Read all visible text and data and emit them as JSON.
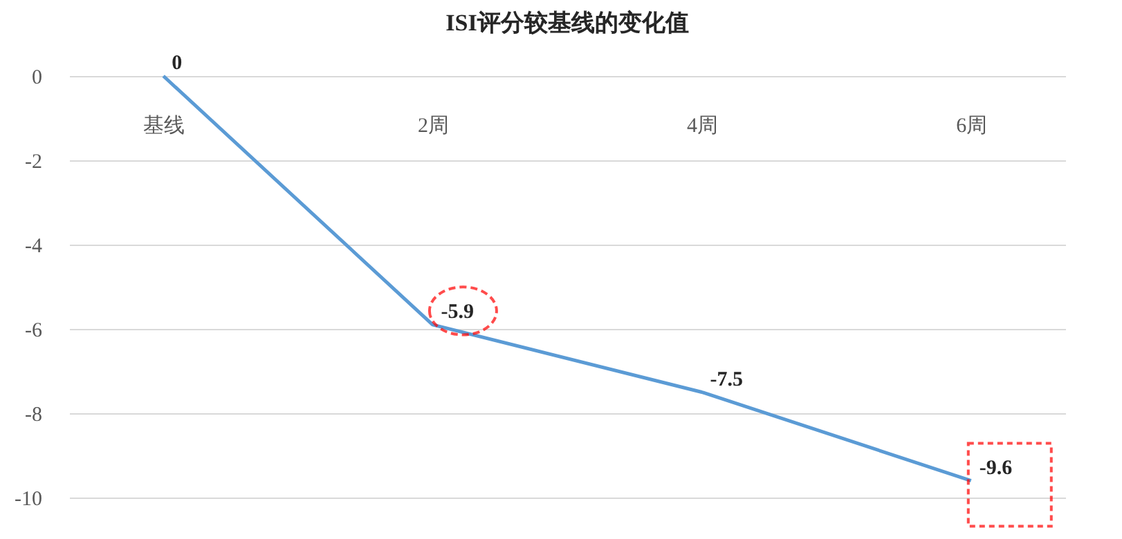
{
  "chart_data": {
    "type": "line",
    "title": "ISI评分较基线的变化值",
    "categories": [
      "基线",
      "2周",
      "4周",
      "6周"
    ],
    "series": [
      {
        "color": "#5b9bd5",
        "values": [
          0,
          -5.9,
          -7.5,
          -9.6
        ]
      }
    ],
    "ylim": [
      -10,
      0
    ],
    "yticks": [
      0,
      -2,
      -4,
      -6,
      -8,
      -10
    ],
    "grid": "y",
    "legend": false,
    "marker": "none",
    "line_style": "solid",
    "data_labels": true
  }
}
